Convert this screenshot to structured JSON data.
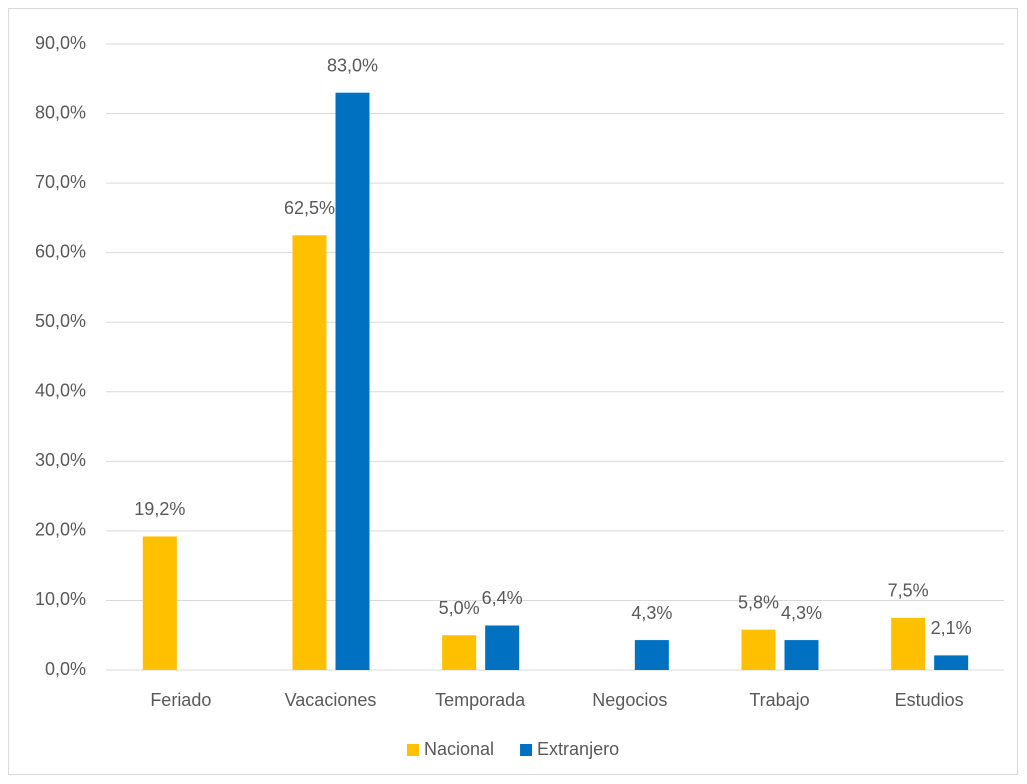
{
  "chart_data": {
    "type": "bar",
    "categories": [
      "Feriado",
      "Vacaciones",
      "Temporada",
      "Negocios",
      "Trabajo",
      "Estudios"
    ],
    "series": [
      {
        "name": "Nacional",
        "color": "#FFC000",
        "values": [
          19.2,
          62.5,
          5.0,
          null,
          5.8,
          7.5
        ],
        "value_labels": [
          "19,2%",
          "62,5%",
          "5,0%",
          null,
          "5,8%",
          "7,5%"
        ]
      },
      {
        "name": "Extranjero",
        "color": "#0070C0",
        "values": [
          null,
          83.0,
          6.4,
          4.3,
          4.3,
          2.1
        ],
        "value_labels": [
          null,
          "83,0%",
          "6,4%",
          "4,3%",
          "4,3%",
          "2,1%"
        ]
      }
    ],
    "ylim": [
      0,
      90
    ],
    "yticks": [
      {
        "value": 0,
        "label": "0,0%"
      },
      {
        "value": 10,
        "label": "10,0%"
      },
      {
        "value": 20,
        "label": "20,0%"
      },
      {
        "value": 30,
        "label": "30,0%"
      },
      {
        "value": 40,
        "label": "40,0%"
      },
      {
        "value": 50,
        "label": "50,0%"
      },
      {
        "value": 60,
        "label": "60,0%"
      },
      {
        "value": 70,
        "label": "70,0%"
      },
      {
        "value": 80,
        "label": "80,0%"
      },
      {
        "value": 90,
        "label": "90,0%"
      }
    ],
    "grid": true,
    "legend": "bottom"
  }
}
